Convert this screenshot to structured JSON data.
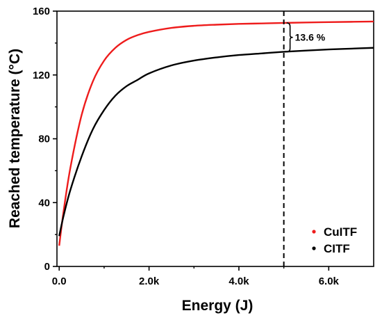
{
  "chart_data": {
    "type": "line",
    "xlabel": "Energy (J)",
    "ylabel": "Reached temperature (°C)",
    "xlim": [
      -50,
      7000
    ],
    "ylim": [
      0,
      160
    ],
    "x_ticks": [
      0,
      2000,
      4000,
      6000
    ],
    "x_tick_labels": [
      "0.0",
      "2.0k",
      "4.0k",
      "6.0k"
    ],
    "y_ticks": [
      0,
      40,
      80,
      120,
      160
    ],
    "y_tick_labels": [
      "0",
      "40",
      "80",
      "120",
      "160"
    ],
    "legend_position": "bottom-right",
    "series": [
      {
        "name": "CuITF",
        "color": "#ee1c1c",
        "x": [
          0,
          100,
          250,
          500,
          750,
          1000,
          1250,
          1500,
          1750,
          2000,
          2500,
          3000,
          3500,
          4000,
          4500,
          5000,
          5500,
          6000,
          6500,
          7000
        ],
        "y": [
          13,
          35,
          62,
          95,
          116,
          129,
          137,
          142,
          145,
          147,
          149.5,
          150.8,
          151.5,
          152,
          152.3,
          152.6,
          152.9,
          153.1,
          153.3,
          153.5
        ]
      },
      {
        "name": "CITF",
        "color": "#000000",
        "x": [
          0,
          100,
          250,
          500,
          750,
          1000,
          1250,
          1500,
          1750,
          2000,
          2500,
          3000,
          3500,
          4000,
          4500,
          5000,
          5500,
          6000,
          6500,
          7000
        ],
        "y": [
          19,
          32,
          48,
          69,
          86,
          98,
          107,
          113,
          117,
          121,
          126,
          129,
          131,
          132.5,
          133.5,
          134.5,
          135.3,
          136,
          136.5,
          137
        ]
      }
    ],
    "annotations": {
      "vline_x": 5000,
      "bracket_y_top": 152.6,
      "bracket_y_bottom": 134.5,
      "label": "13.6 %"
    }
  }
}
